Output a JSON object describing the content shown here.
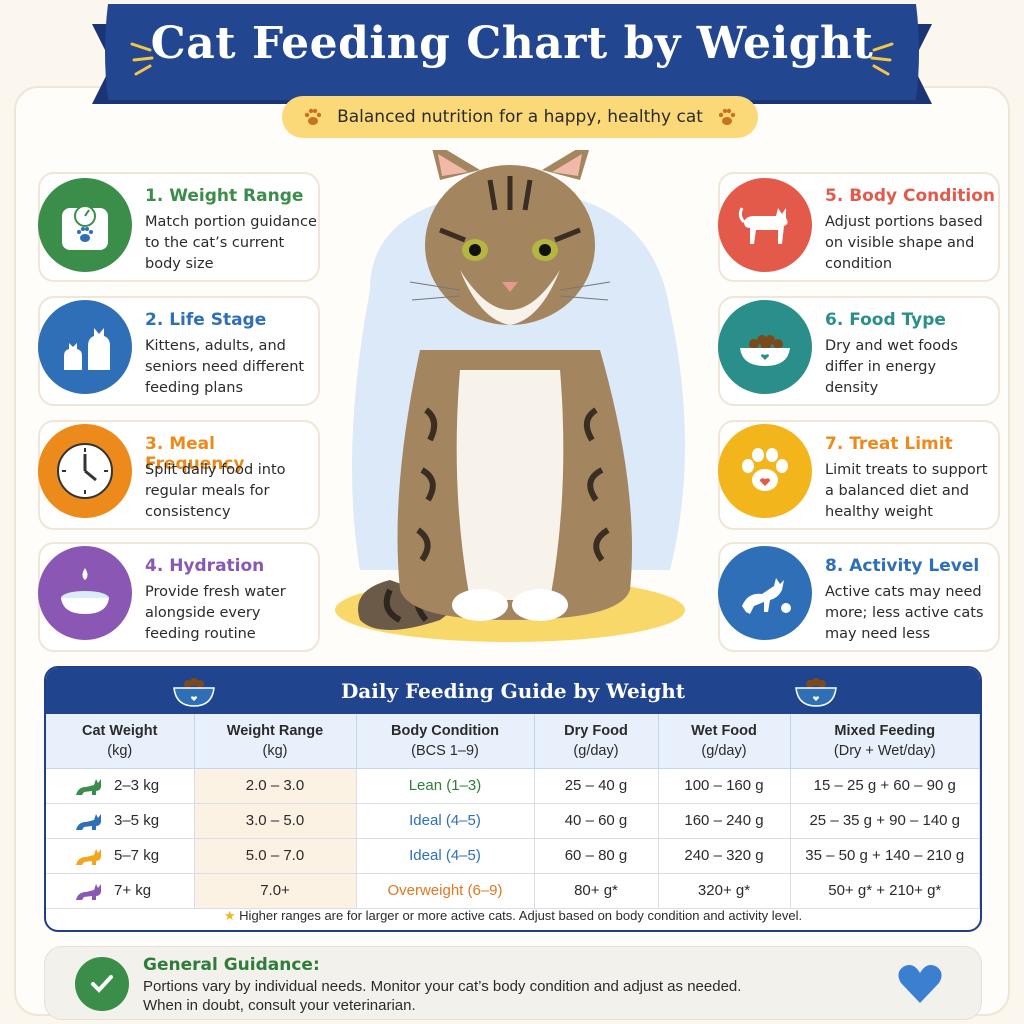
{
  "header": {
    "title": "Cat Feeding Chart by Weight",
    "subtitle": "Balanced nutrition for a happy, healthy cat"
  },
  "colors": {
    "banner": "#1f3f86",
    "green": "#3b8d4a",
    "blue": "#2f6fb8",
    "orange": "#ec8a1c",
    "purple": "#8a58b4",
    "red": "#e35a4a",
    "teal": "#2a8f8a",
    "yellow": "#f3b51c",
    "activity": "#2f6fb8"
  },
  "left_cards": [
    {
      "title": "1. Weight Range",
      "desc": [
        "Match portion guidance",
        "to the cat’s current",
        "body size"
      ],
      "icon": "scale-icon",
      "color": "#3b8d4a"
    },
    {
      "title": "2. Life Stage",
      "desc": [
        "Kittens, adults, and",
        "seniors need different",
        "feeding plans"
      ],
      "icon": "cats-icon",
      "color": "#2f6fb8"
    },
    {
      "title": "3. Meal Frequency",
      "desc": [
        "Split daily food into",
        "regular meals for",
        "consistency"
      ],
      "icon": "clock-icon",
      "color": "#ec8a1c"
    },
    {
      "title": "4. Hydration",
      "desc": [
        "Provide fresh water",
        "alongside every",
        "feeding routine"
      ],
      "icon": "water-bowl-icon",
      "color": "#8a58b4"
    }
  ],
  "right_cards": [
    {
      "title": "5. Body Condition",
      "desc": [
        "Adjust portions based",
        "on visible shape and",
        "condition"
      ],
      "icon": "cat-body-icon",
      "color": "#e35a4a"
    },
    {
      "title": "6. Food Type",
      "desc": [
        "Dry and wet foods",
        "differ in energy",
        "density"
      ],
      "icon": "food-bowl-icon",
      "color": "#2a8f8a"
    },
    {
      "title": "7. Treat Limit",
      "desc": [
        "Limit treats to support",
        "a balanced diet and",
        "healthy weight"
      ],
      "icon": "paw-icon",
      "color": "#f3b51c"
    },
    {
      "title": "8. Activity Level",
      "desc": [
        "Active cats may need",
        "more; less active cats",
        "may need less"
      ],
      "icon": "playing-cat-icon",
      "color": "#2f6fb8"
    }
  ],
  "table": {
    "title": "Daily Feeding Guide by Weight",
    "headers": [
      {
        "main": "Cat Weight",
        "sub": "(kg)"
      },
      {
        "main": "Weight Range",
        "sub": "(kg)"
      },
      {
        "main": "Body Condition",
        "sub": "(BCS 1–9)"
      },
      {
        "main": "Dry Food",
        "sub": "(g/day)"
      },
      {
        "main": "Wet Food",
        "sub": "(g/day)"
      },
      {
        "main": "Mixed Feeding",
        "sub": "(Dry + Wet/day)"
      }
    ],
    "rows": [
      {
        "weight": "2–3 kg",
        "range": "2.0 – 3.0",
        "condition": "Lean (1–3)",
        "cond_color": "#2e7d3b",
        "dry": "25 – 40 g",
        "wet": "100 – 160 g",
        "mixed": "15 – 25 g + 60 – 90 g",
        "cat_color": "#3b8d4a"
      },
      {
        "weight": "3–5 kg",
        "range": "3.0 – 5.0",
        "condition": "Ideal (4–5)",
        "cond_color": "#2f6fb8",
        "dry": "40 – 60 g",
        "wet": "160 – 240 g",
        "mixed": "25 – 35 g + 90 – 140 g",
        "cat_color": "#2f6fb8"
      },
      {
        "weight": "5–7 kg",
        "range": "5.0 – 7.0",
        "condition": "Ideal (4–5)",
        "cond_color": "#2f6fb8",
        "dry": "60 – 80 g",
        "wet": "240 – 320 g",
        "mixed": "35 – 50 g + 140 – 210 g",
        "cat_color": "#f3a51c"
      },
      {
        "weight": "7+ kg",
        "range": "7.0+",
        "condition": "Overweight (6–9)",
        "cond_color": "#e07820",
        "dry": "80+ g*",
        "wet": "320+ g*",
        "mixed": "50+ g* + 210+ g*",
        "cat_color": "#8a58b4"
      }
    ],
    "note": "Higher ranges are for larger or more active cats. Adjust based on body condition and activity level."
  },
  "guidance": {
    "title": "General Guidance:",
    "line1": "Portions vary by individual needs. Monitor your cat’s body condition and adjust as needed.",
    "line2": "When in doubt, consult your veterinarian."
  }
}
